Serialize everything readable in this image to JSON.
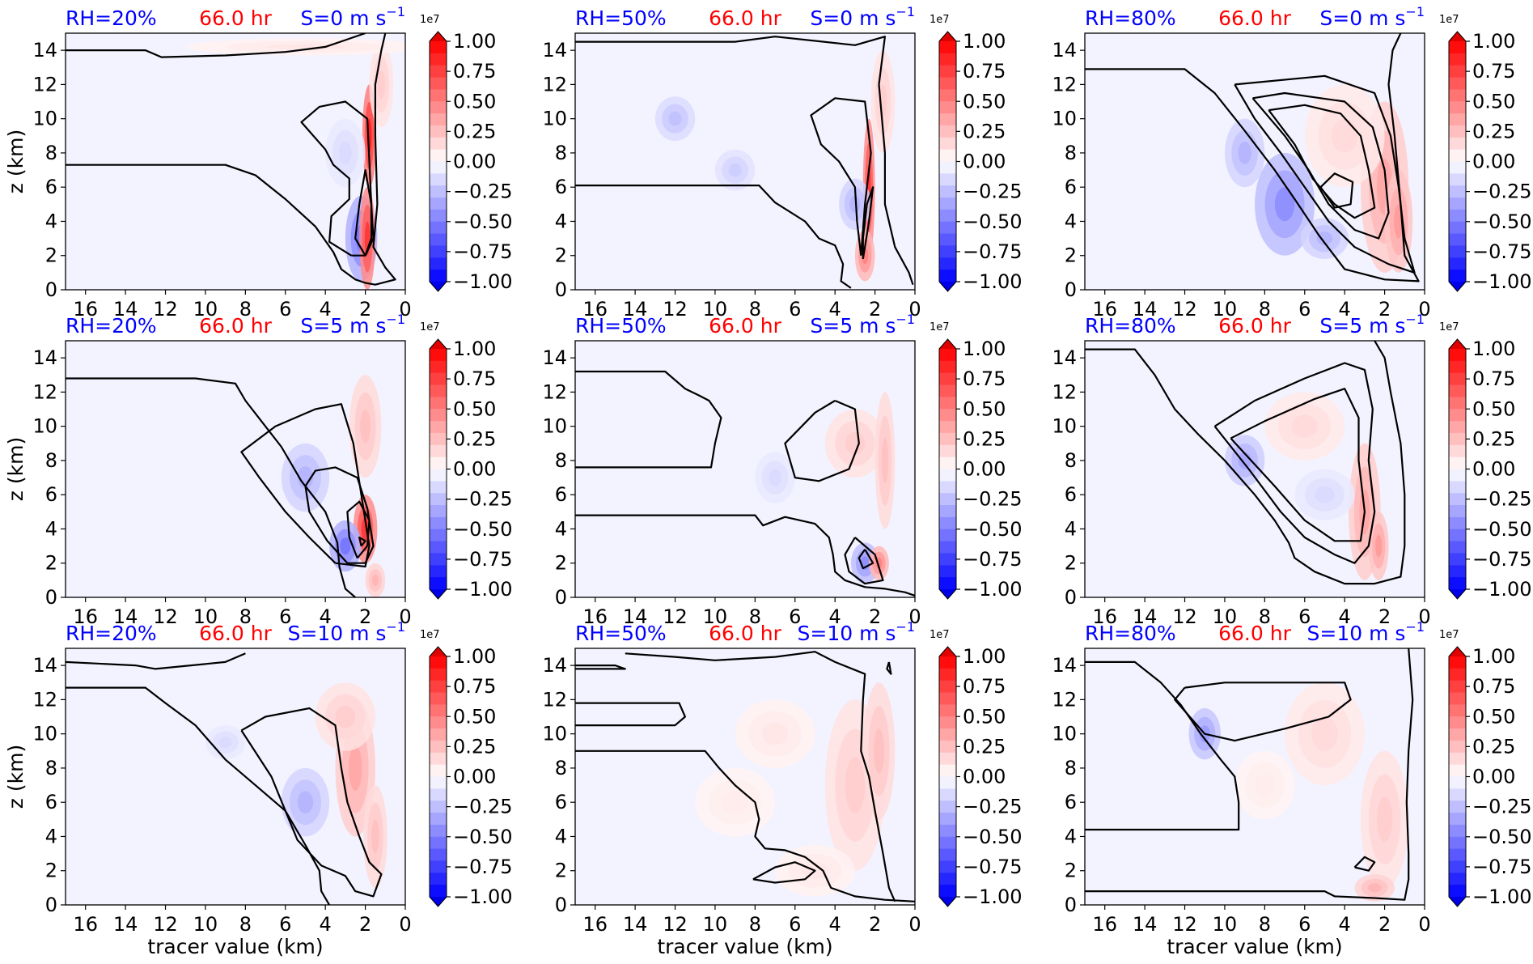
{
  "figure": {
    "colors": {
      "rh": "#0000ff",
      "time": "#ff0000",
      "shear": "#0000ff",
      "contour": "#000000"
    },
    "time_label": "66.0 hr",
    "xlabel": "tracer value (km)",
    "ylabel": "z (km)",
    "colorbar": {
      "ticks": [
        "1.00",
        "0.75",
        "0.50",
        "0.25",
        "0.00",
        "−0.25",
        "−0.50",
        "−0.75",
        "−1.00"
      ],
      "exponent_label": "1e7",
      "colormap": "bwr",
      "range": [
        -1.0,
        1.0
      ],
      "extend": "both"
    }
  },
  "chart_data": [
    {
      "type": "heatmap",
      "rh": "RH=20%",
      "shear": "S=0 m s",
      "shear_exp": "−1",
      "xlim": [
        17,
        0
      ],
      "ylim": [
        0,
        15
      ],
      "xticks": [
        "16",
        "14",
        "12",
        "10",
        "8",
        "6",
        "4",
        "2",
        "0"
      ],
      "yticks": [
        "0",
        "2",
        "4",
        "6",
        "8",
        "10",
        "12",
        "14"
      ]
    },
    {
      "type": "heatmap",
      "rh": "RH=50%",
      "shear": "S=0 m s",
      "shear_exp": "−1",
      "xlim": [
        17,
        0
      ],
      "ylim": [
        0,
        15
      ],
      "xticks": [
        "16",
        "14",
        "12",
        "10",
        "8",
        "6",
        "4",
        "2",
        "0"
      ],
      "yticks": [
        "0",
        "2",
        "4",
        "6",
        "8",
        "10",
        "12",
        "14"
      ]
    },
    {
      "type": "heatmap",
      "rh": "RH=80%",
      "shear": "S=0 m s",
      "shear_exp": "−1",
      "xlim": [
        17,
        0
      ],
      "ylim": [
        0,
        15
      ],
      "xticks": [
        "16",
        "14",
        "12",
        "10",
        "8",
        "6",
        "4",
        "2",
        "0"
      ],
      "yticks": [
        "0",
        "2",
        "4",
        "6",
        "8",
        "10",
        "12",
        "14"
      ]
    },
    {
      "type": "heatmap",
      "rh": "RH=20%",
      "shear": "S=5 m s",
      "shear_exp": "−1",
      "xlim": [
        17,
        0
      ],
      "ylim": [
        0,
        15
      ],
      "xticks": [
        "16",
        "14",
        "12",
        "10",
        "8",
        "6",
        "4",
        "2",
        "0"
      ],
      "yticks": [
        "0",
        "2",
        "4",
        "6",
        "8",
        "10",
        "12",
        "14"
      ]
    },
    {
      "type": "heatmap",
      "rh": "RH=50%",
      "shear": "S=5 m s",
      "shear_exp": "−1",
      "xlim": [
        17,
        0
      ],
      "ylim": [
        0,
        15
      ],
      "xticks": [
        "16",
        "14",
        "12",
        "10",
        "8",
        "6",
        "4",
        "2",
        "0"
      ],
      "yticks": [
        "0",
        "2",
        "4",
        "6",
        "8",
        "10",
        "12",
        "14"
      ]
    },
    {
      "type": "heatmap",
      "rh": "RH=80%",
      "shear": "S=5 m s",
      "shear_exp": "−1",
      "xlim": [
        17,
        0
      ],
      "ylim": [
        0,
        15
      ],
      "xticks": [
        "16",
        "14",
        "12",
        "10",
        "8",
        "6",
        "4",
        "2",
        "0"
      ],
      "yticks": [
        "0",
        "2",
        "4",
        "6",
        "8",
        "10",
        "12",
        "14"
      ]
    },
    {
      "type": "heatmap",
      "rh": "RH=20%",
      "shear": "S=10 m s",
      "shear_exp": "−1",
      "xlim": [
        17,
        0
      ],
      "ylim": [
        0,
        15
      ],
      "xticks": [
        "16",
        "14",
        "12",
        "10",
        "8",
        "6",
        "4",
        "2",
        "0"
      ],
      "yticks": [
        "0",
        "2",
        "4",
        "6",
        "8",
        "10",
        "12",
        "14"
      ]
    },
    {
      "type": "heatmap",
      "rh": "RH=50%",
      "shear": "S=10 m s",
      "shear_exp": "−1",
      "xlim": [
        17,
        0
      ],
      "ylim": [
        0,
        15
      ],
      "xticks": [
        "16",
        "14",
        "12",
        "10",
        "8",
        "6",
        "4",
        "2",
        "0"
      ],
      "yticks": [
        "0",
        "2",
        "4",
        "6",
        "8",
        "10",
        "12",
        "14"
      ]
    },
    {
      "type": "heatmap",
      "rh": "RH=80%",
      "shear": "S=10 m s",
      "shear_exp": "−1",
      "xlim": [
        17,
        0
      ],
      "ylim": [
        0,
        15
      ],
      "xticks": [
        "16",
        "14",
        "12",
        "10",
        "8",
        "6",
        "4",
        "2",
        "0"
      ],
      "yticks": [
        "0",
        "2",
        "4",
        "6",
        "8",
        "10",
        "12",
        "14"
      ]
    }
  ]
}
